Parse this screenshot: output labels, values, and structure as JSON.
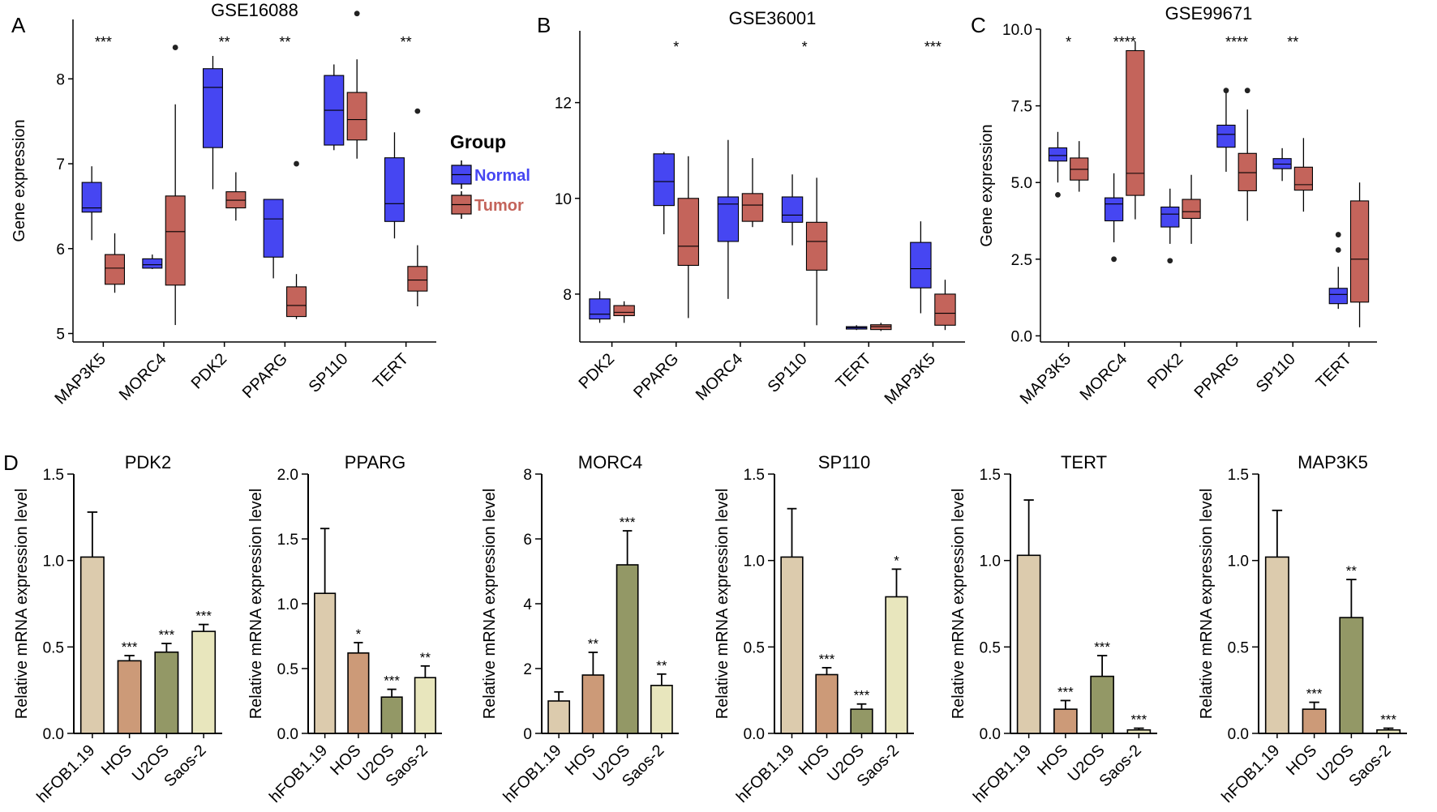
{
  "figure": {
    "panel_letters": [
      "A",
      "B",
      "C",
      "D"
    ],
    "legend": {
      "title": "Group",
      "placement": "right of panel A",
      "entries": [
        {
          "label": "Normal",
          "color": "#4646f2"
        },
        {
          "label": "Tumor",
          "color": "#c4645b"
        }
      ]
    },
    "colors": {
      "normal": "#4646f2",
      "tumor": "#c4645b",
      "bar_hfob": "#dccbad",
      "bar_hos": "#cc9a78",
      "bar_u2os": "#939866",
      "bar_saos": "#e8e6bd"
    }
  },
  "chart_data": [
    {
      "id": "A",
      "type": "box",
      "title": "GSE16088",
      "ylabel": "Gene expression",
      "ylim": [
        4.9,
        8.7
      ],
      "yticks": [
        "5",
        "6",
        "7",
        "8"
      ],
      "categories": [
        "MAP3K5",
        "MORC4",
        "PDK2",
        "PPARG",
        "SP110",
        "TERT"
      ],
      "significance": [
        "***",
        "",
        "**",
        "**",
        "",
        "**"
      ],
      "series": [
        {
          "name": "Normal",
          "boxes": [
            {
              "min": 6.1,
              "q1": 6.43,
              "median": 6.48,
              "q3": 6.78,
              "max": 6.97,
              "outliers": []
            },
            {
              "min": 5.76,
              "q1": 5.77,
              "median": 5.81,
              "q3": 5.88,
              "max": 5.93,
              "outliers": []
            },
            {
              "min": 6.7,
              "q1": 7.19,
              "median": 7.9,
              "q3": 8.12,
              "max": 8.27,
              "outliers": []
            },
            {
              "min": 5.65,
              "q1": 5.9,
              "median": 6.35,
              "q3": 6.58,
              "max": 6.58,
              "outliers": []
            },
            {
              "min": 7.16,
              "q1": 7.22,
              "median": 7.63,
              "q3": 8.04,
              "max": 8.17,
              "outliers": []
            },
            {
              "min": 6.12,
              "q1": 6.32,
              "median": 6.53,
              "q3": 7.07,
              "max": 7.37,
              "outliers": []
            }
          ]
        },
        {
          "name": "Tumor",
          "boxes": [
            {
              "min": 5.48,
              "q1": 5.58,
              "median": 5.77,
              "q3": 5.93,
              "max": 6.18,
              "outliers": []
            },
            {
              "min": 5.1,
              "q1": 5.57,
              "median": 6.2,
              "q3": 6.62,
              "max": 7.7,
              "outliers": [
                8.37
              ]
            },
            {
              "min": 6.33,
              "q1": 6.48,
              "median": 6.57,
              "q3": 6.67,
              "max": 6.9,
              "outliers": []
            },
            {
              "min": 5.17,
              "q1": 5.2,
              "median": 5.33,
              "q3": 5.55,
              "max": 5.7,
              "outliers": [
                7.0
              ]
            },
            {
              "min": 7.06,
              "q1": 7.28,
              "median": 7.52,
              "q3": 7.84,
              "max": 8.23,
              "outliers": [
                8.77
              ]
            },
            {
              "min": 5.32,
              "q1": 5.5,
              "median": 5.63,
              "q3": 5.79,
              "max": 6.04,
              "outliers": [
                7.62
              ]
            }
          ]
        }
      ]
    },
    {
      "id": "B",
      "type": "box",
      "title": "GSE36001",
      "ylabel": "",
      "ylim": [
        7.0,
        13.5
      ],
      "yticks": [
        "8",
        "10",
        "12"
      ],
      "categories": [
        "PDK2",
        "PPARG",
        "MORC4",
        "SP110",
        "TERT",
        "MAP3K5"
      ],
      "significance": [
        "",
        "*",
        "",
        "*",
        "",
        "***"
      ],
      "series": [
        {
          "name": "Normal",
          "boxes": [
            {
              "min": 7.4,
              "q1": 7.48,
              "median": 7.58,
              "q3": 7.9,
              "max": 8.06,
              "outliers": []
            },
            {
              "min": 9.25,
              "q1": 9.85,
              "median": 10.35,
              "q3": 10.93,
              "max": 10.97,
              "outliers": []
            },
            {
              "min": 7.9,
              "q1": 9.1,
              "median": 9.88,
              "q3": 10.03,
              "max": 11.22,
              "outliers": []
            },
            {
              "min": 9.02,
              "q1": 9.5,
              "median": 9.65,
              "q3": 10.03,
              "max": 10.5,
              "outliers": []
            },
            {
              "min": 7.25,
              "q1": 7.27,
              "median": 7.3,
              "q3": 7.32,
              "max": 7.35,
              "outliers": []
            },
            {
              "min": 7.6,
              "q1": 8.13,
              "median": 8.53,
              "q3": 9.08,
              "max": 9.52,
              "outliers": []
            }
          ]
        },
        {
          "name": "Tumor",
          "boxes": [
            {
              "min": 7.4,
              "q1": 7.55,
              "median": 7.62,
              "q3": 7.76,
              "max": 7.85,
              "outliers": []
            },
            {
              "min": 7.5,
              "q1": 8.6,
              "median": 9.0,
              "q3": 10.0,
              "max": 10.88,
              "outliers": []
            },
            {
              "min": 9.4,
              "q1": 9.52,
              "median": 9.86,
              "q3": 10.1,
              "max": 10.84,
              "outliers": []
            },
            {
              "min": 7.35,
              "q1": 8.5,
              "median": 9.1,
              "q3": 9.5,
              "max": 10.43,
              "outliers": []
            },
            {
              "min": 7.23,
              "q1": 7.26,
              "median": 7.32,
              "q3": 7.36,
              "max": 7.4,
              "outliers": []
            },
            {
              "min": 7.25,
              "q1": 7.35,
              "median": 7.6,
              "q3": 8.0,
              "max": 8.3,
              "outliers": []
            }
          ]
        }
      ]
    },
    {
      "id": "C",
      "type": "box",
      "title": "GSE99671",
      "ylabel": "Gene expression",
      "ylim": [
        -0.2,
        10.0
      ],
      "yticks": [
        "0.0",
        "2.5",
        "5.0",
        "7.5",
        "10.0"
      ],
      "categories": [
        "MAP3K5",
        "MORC4",
        "PDK2",
        "PPARG",
        "SP110",
        "TERT"
      ],
      "significance": [
        "*",
        "****",
        "",
        "****",
        "**",
        ""
      ],
      "series": [
        {
          "name": "Normal",
          "boxes": [
            {
              "min": 5.0,
              "q1": 5.7,
              "median": 5.88,
              "q3": 6.13,
              "max": 6.65,
              "outliers": [
                4.6
              ]
            },
            {
              "min": 3.05,
              "q1": 3.75,
              "median": 4.3,
              "q3": 4.5,
              "max": 5.3,
              "outliers": [
                2.5
              ]
            },
            {
              "min": 3.0,
              "q1": 3.55,
              "median": 3.97,
              "q3": 4.2,
              "max": 4.8,
              "outliers": [
                2.45
              ]
            },
            {
              "min": 5.35,
              "q1": 6.15,
              "median": 6.57,
              "q3": 6.87,
              "max": 8.0,
              "outliers": [
                8.0
              ]
            },
            {
              "min": 5.05,
              "q1": 5.45,
              "median": 5.6,
              "q3": 5.78,
              "max": 6.12,
              "outliers": []
            },
            {
              "min": 0.88,
              "q1": 1.05,
              "median": 1.35,
              "q3": 1.55,
              "max": 2.25,
              "outliers": [
                2.8,
                3.3
              ]
            }
          ]
        },
        {
          "name": "Tumor",
          "boxes": [
            {
              "min": 4.7,
              "q1": 5.08,
              "median": 5.43,
              "q3": 5.8,
              "max": 6.35,
              "outliers": []
            },
            {
              "min": 3.8,
              "q1": 4.58,
              "median": 5.3,
              "q3": 9.3,
              "max": 9.6,
              "outliers": []
            },
            {
              "min": 3.0,
              "q1": 3.83,
              "median": 4.05,
              "q3": 4.45,
              "max": 5.25,
              "outliers": []
            },
            {
              "min": 3.75,
              "q1": 4.73,
              "median": 5.32,
              "q3": 5.95,
              "max": 7.38,
              "outliers": [
                8.0
              ]
            },
            {
              "min": 4.05,
              "q1": 4.75,
              "median": 4.93,
              "q3": 5.5,
              "max": 6.45,
              "outliers": []
            },
            {
              "min": 0.28,
              "q1": 1.1,
              "median": 2.5,
              "q3": 4.4,
              "max": 5.0,
              "outliers": []
            }
          ]
        }
      ]
    },
    {
      "id": "D1",
      "type": "bar",
      "title": "PDK2",
      "ylabel": "Relative mRNA expression level",
      "ylim": [
        0,
        1.5
      ],
      "yticks": [
        "0.0",
        "0.5",
        "1.0",
        "1.5"
      ],
      "categories": [
        "hFOB1.19",
        "HOS",
        "U2OS",
        "Saos-2"
      ],
      "values": [
        1.02,
        0.42,
        0.47,
        0.59
      ],
      "errors": [
        0.26,
        0.03,
        0.05,
        0.04
      ],
      "significance": [
        "",
        "***",
        "***",
        "***"
      ]
    },
    {
      "id": "D2",
      "type": "bar",
      "title": "PPARG",
      "ylabel": "Relative mRNA expression level",
      "ylim": [
        0,
        2.0
      ],
      "yticks": [
        "0.0",
        "0.5",
        "1.0",
        "1.5",
        "2.0"
      ],
      "categories": [
        "hFOB1.19",
        "HOS",
        "U2OS",
        "Saos-2"
      ],
      "values": [
        1.08,
        0.62,
        0.28,
        0.43
      ],
      "errors": [
        0.5,
        0.08,
        0.06,
        0.09
      ],
      "significance": [
        "",
        "*",
        "***",
        "**"
      ]
    },
    {
      "id": "D3",
      "type": "bar",
      "title": "MORC4",
      "ylabel": "Relative mRNA expression level",
      "ylim": [
        0,
        8
      ],
      "yticks": [
        "0",
        "2",
        "4",
        "6",
        "8"
      ],
      "categories": [
        "hFOB1.19",
        "HOS",
        "U2OS",
        "Saos-2"
      ],
      "values": [
        1.0,
        1.8,
        5.2,
        1.48
      ],
      "errors": [
        0.28,
        0.7,
        1.05,
        0.35
      ],
      "significance": [
        "",
        "**",
        "***",
        "**"
      ]
    },
    {
      "id": "D4",
      "type": "bar",
      "title": "SP110",
      "ylabel": "Relative mRNA expression level",
      "ylim": [
        0,
        1.5
      ],
      "yticks": [
        "0.0",
        "0.5",
        "1.0",
        "1.5"
      ],
      "categories": [
        "hFOB1.19",
        "HOS",
        "U2OS",
        "Saos-2"
      ],
      "values": [
        1.02,
        0.34,
        0.14,
        0.79
      ],
      "errors": [
        0.28,
        0.04,
        0.03,
        0.16
      ],
      "significance": [
        "",
        "***",
        "***",
        "*"
      ]
    },
    {
      "id": "D5",
      "type": "bar",
      "title": "TERT",
      "ylabel": "Relative mRNA expression level",
      "ylim": [
        0,
        1.5
      ],
      "yticks": [
        "0.0",
        "0.5",
        "1.0",
        "1.5"
      ],
      "categories": [
        "hFOB1.19",
        "HOS",
        "U2OS",
        "Saos-2"
      ],
      "values": [
        1.03,
        0.14,
        0.33,
        0.02
      ],
      "errors": [
        0.32,
        0.05,
        0.12,
        0.01
      ],
      "significance": [
        "",
        "***",
        "***",
        "***"
      ]
    },
    {
      "id": "D6",
      "type": "bar",
      "title": "MAP3K5",
      "ylabel": "Relative mRNA expression level",
      "ylim": [
        0,
        1.5
      ],
      "yticks": [
        "0.0",
        "0.5",
        "1.0",
        "1.5"
      ],
      "categories": [
        "hFOB1.19",
        "HOS",
        "U2OS",
        "Saos-2"
      ],
      "values": [
        1.02,
        0.14,
        0.67,
        0.02
      ],
      "errors": [
        0.27,
        0.04,
        0.22,
        0.01
      ],
      "significance": [
        "",
        "***",
        "**",
        "***"
      ]
    }
  ]
}
